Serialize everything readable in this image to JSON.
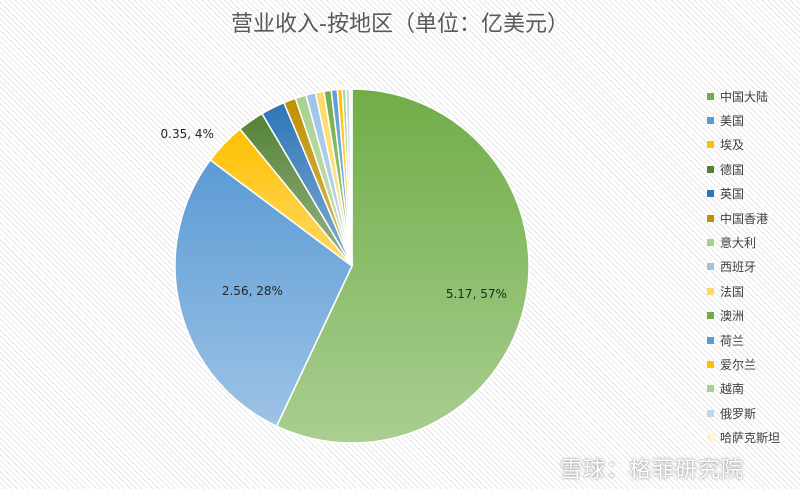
{
  "chart_data": {
    "type": "pie",
    "title": "营业收入-按地区（单位：亿美元）",
    "categories": [
      "中国大陆",
      "美国",
      "埃及",
      "德国",
      "英国",
      "中国香港",
      "意大利",
      "西班牙",
      "法国",
      "澳洲",
      "荷兰",
      "爱尔兰",
      "越南",
      "俄罗斯",
      "哈萨克斯坦"
    ],
    "values": [
      5.17,
      2.56,
      0.35,
      0.22,
      0.2,
      0.1,
      0.09,
      0.08,
      0.07,
      0.06,
      0.05,
      0.04,
      0.03,
      0.03,
      0.02
    ],
    "colors": [
      "#70ad47",
      "#5b9bd5",
      "#ffc000",
      "#548235",
      "#2e75b6",
      "#bf9000",
      "#a9d18e",
      "#9dc3e6",
      "#ffd966",
      "#70ad47",
      "#5b9bd5",
      "#ffc000",
      "#a9d18e",
      "#bdd7ee",
      "#fff2cc"
    ],
    "data_labels": [
      {
        "index": 0,
        "text": "5.17, 57%"
      },
      {
        "index": 1,
        "text": "2.56, 28%"
      },
      {
        "index": 2,
        "text": "0.35, 4%"
      }
    ],
    "legend_position": "right"
  },
  "watermark": "雪球：格菲研究院"
}
